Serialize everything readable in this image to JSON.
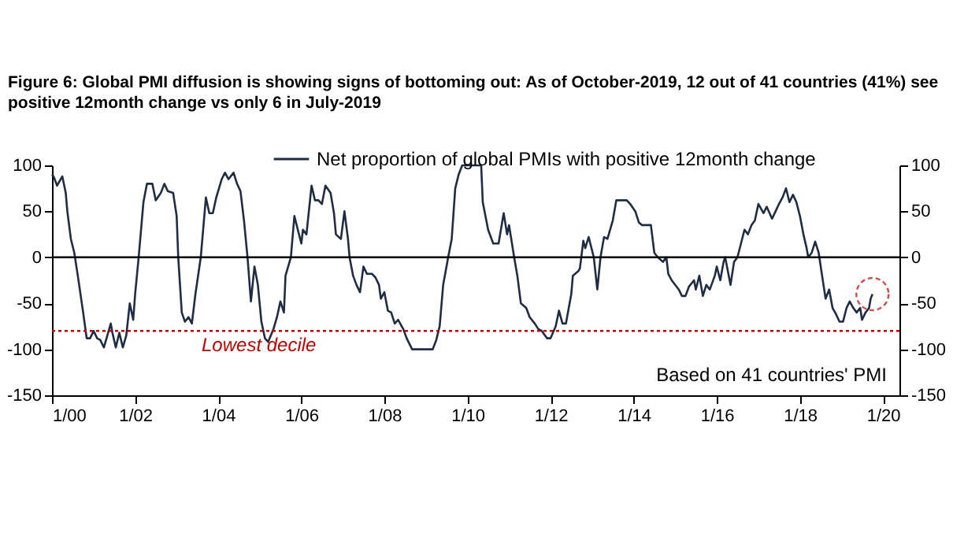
{
  "chart_data": {
    "type": "line",
    "title": "Figure 6: Global PMI diffusion is showing signs of bottoming out: As of October-2019, 12 out of 41 countries (41%) see positive 12month change vs only 6 in July-2019",
    "x": [
      "2000-01-01",
      "2000-01-15",
      "2000-02-15",
      "2000-04-01",
      "2000-05-01",
      "2000-05-15",
      "2000-06-15",
      "2000-07-15",
      "2000-08-15",
      "2000-10-01",
      "2000-11-01",
      "2000-12-01",
      "2001-01-01",
      "2001-02-01",
      "2001-03-01",
      "2001-04-01",
      "2001-06-01",
      "2001-06-15",
      "2001-07-15",
      "2001-08-15",
      "2001-09-15",
      "2001-10-15",
      "2001-11-15",
      "2001-12-15",
      "2002-01-01",
      "2002-02-01",
      "2002-03-15",
      "2002-04-15",
      "2002-06-01",
      "2002-07-01",
      "2002-08-15",
      "2002-09-15",
      "2002-10-15",
      "2002-12-01",
      "2003-01-01",
      "2003-01-15",
      "2003-02-15",
      "2003-03-15",
      "2003-04-15",
      "2003-05-15",
      "2003-06-15",
      "2003-08-01",
      "2003-09-15",
      "2003-10-15",
      "2003-11-15",
      "2003-12-15",
      "2004-02-01",
      "2004-03-01",
      "2004-04-01",
      "2004-05-15",
      "2004-06-15",
      "2004-07-15",
      "2004-08-15",
      "2004-09-15",
      "2004-10-15",
      "2004-11-15",
      "2004-12-15",
      "2005-01-15",
      "2005-02-15",
      "2005-03-15",
      "2005-05-01",
      "2005-06-01",
      "2005-07-01",
      "2005-08-01",
      "2005-08-15",
      "2005-10-01",
      "2005-11-01",
      "2005-12-01",
      "2006-01-01",
      "2006-01-15",
      "2006-02-15",
      "2006-04-01",
      "2006-05-01",
      "2006-06-01",
      "2006-07-01",
      "2006-08-01",
      "2006-09-15",
      "2006-10-15",
      "2006-11-01",
      "2006-12-15",
      "2007-01-15",
      "2007-02-15",
      "2007-03-01",
      "2007-04-01",
      "2007-05-01",
      "2007-06-01",
      "2007-07-01",
      "2007-08-01",
      "2007-09-15",
      "2007-10-15",
      "2007-11-15",
      "2007-12-01",
      "2008-01-01",
      "2008-02-01",
      "2008-03-01",
      "2008-04-01",
      "2008-05-01",
      "2008-06-15",
      "2008-07-15",
      "2008-09-01",
      "2008-12-01",
      "2009-03-01",
      "2009-04-01",
      "2009-05-01",
      "2009-06-01",
      "2009-07-15",
      "2009-08-15",
      "2009-09-15",
      "2009-10-15",
      "2009-11-15",
      "2010-05-01",
      "2010-05-15",
      "2010-07-01",
      "2010-08-15",
      "2010-10-01",
      "2010-11-15",
      "2010-12-15",
      "2011-01-01",
      "2011-02-15",
      "2011-03-15",
      "2011-04-15",
      "2011-06-01",
      "2011-07-01",
      "2011-08-15",
      "2011-09-15",
      "2011-10-15",
      "2011-12-01",
      "2012-01-01",
      "2012-02-15",
      "2012-03-15",
      "2012-04-15",
      "2012-05-15",
      "2012-07-01",
      "2012-07-15",
      "2012-09-01",
      "2012-09-15",
      "2012-10-15",
      "2012-11-01",
      "2012-12-01",
      "2013-01-15",
      "2013-02-15",
      "2013-03-15",
      "2013-04-15",
      "2013-05-15",
      "2013-07-01",
      "2013-08-01",
      "2013-09-01",
      "2013-11-01",
      "2013-12-01",
      "2014-01-15",
      "2014-02-15",
      "2014-03-15",
      "2014-04-15",
      "2014-06-01",
      "2014-07-01",
      "2014-08-01",
      "2014-09-15",
      "2014-10-15",
      "2014-11-01",
      "2014-12-01",
      "2015-02-01",
      "2015-03-01",
      "2015-04-01",
      "2015-05-01",
      "2015-06-15",
      "2015-07-01",
      "2015-08-01",
      "2015-09-01",
      "2015-10-01",
      "2015-11-01",
      "2015-12-15",
      "2016-01-01",
      "2016-02-01",
      "2016-03-01",
      "2016-03-15",
      "2016-05-01",
      "2016-06-01",
      "2016-07-01",
      "2016-08-01",
      "2016-09-01",
      "2016-10-01",
      "2016-11-01",
      "2016-12-01",
      "2017-01-01",
      "2017-02-15",
      "2017-03-15",
      "2017-05-01",
      "2017-06-01",
      "2017-07-01",
      "2017-08-01",
      "2017-09-01",
      "2017-10-01",
      "2017-11-01",
      "2017-12-01",
      "2018-01-01",
      "2018-02-01",
      "2018-03-01",
      "2018-03-15",
      "2018-04-15",
      "2018-05-15",
      "2018-06-15",
      "2018-07-15",
      "2018-08-15",
      "2018-09-15",
      "2018-10-15",
      "2018-11-15",
      "2018-12-15",
      "2019-01-15",
      "2019-02-15",
      "2019-03-15",
      "2019-04-15",
      "2019-05-15",
      "2019-06-15",
      "2019-07-01",
      "2019-08-01",
      "2019-09-01",
      "2019-09-15",
      "2019-10-01"
    ],
    "series": [
      {
        "name": "Net proportion of global PMIs with positive 12month change",
        "color": "#1f2d44",
        "values": [
          90,
          88,
          78,
          88,
          70,
          50,
          20,
          5,
          -20,
          -60,
          -88,
          -88,
          -80,
          -88,
          -90,
          -98,
          -72,
          -82,
          -98,
          -82,
          -98,
          -85,
          -50,
          -68,
          -40,
          0,
          60,
          80,
          80,
          62,
          70,
          80,
          72,
          70,
          45,
          0,
          -60,
          -70,
          -65,
          -72,
          -40,
          0,
          65,
          48,
          48,
          65,
          85,
          92,
          85,
          92,
          80,
          72,
          40,
          0,
          -48,
          -10,
          -30,
          -70,
          -88,
          -92,
          -78,
          -65,
          -48,
          -60,
          -20,
          0,
          45,
          30,
          15,
          30,
          25,
          78,
          62,
          62,
          58,
          78,
          70,
          48,
          25,
          20,
          50,
          20,
          0,
          -20,
          -30,
          -38,
          -10,
          -18,
          -18,
          -22,
          -30,
          -45,
          -38,
          -58,
          -60,
          -72,
          -68,
          -78,
          -88,
          -100,
          -100,
          -100,
          -90,
          -75,
          -30,
          0,
          20,
          75,
          90,
          100,
          100,
          60,
          30,
          15,
          15,
          48,
          25,
          35,
          0,
          -20,
          -50,
          -55,
          -65,
          -72,
          -78,
          -80,
          -88,
          -88,
          -75,
          -58,
          -72,
          -72,
          -40,
          -20,
          -15,
          -12,
          18,
          10,
          22,
          0,
          -35,
          0,
          22,
          20,
          40,
          62,
          62,
          62,
          58,
          50,
          38,
          35,
          35,
          35,
          5,
          0,
          -5,
          0,
          -18,
          -25,
          -35,
          -42,
          -42,
          -32,
          -25,
          -35,
          -20,
          -42,
          -30,
          -35,
          -20,
          -10,
          -25,
          -5,
          0,
          -30,
          -5,
          0,
          15,
          30,
          25,
          35,
          40,
          58,
          48,
          55,
          42,
          50,
          58,
          65,
          75,
          60,
          68,
          60,
          45,
          25,
          10,
          0,
          5,
          17,
          5,
          -20,
          -45,
          -35,
          -55,
          -62,
          -70,
          -70,
          -55,
          -48,
          -55,
          -60,
          -55,
          -68,
          -60,
          -55,
          -45,
          -40
        ]
      }
    ],
    "xlim": [
      "2000-01-01",
      "2020-05-25"
    ],
    "xticks": [
      {
        "value": "2000-01",
        "label": "1/00"
      },
      {
        "value": "2002-01",
        "label": "1/02"
      },
      {
        "value": "2004-01",
        "label": "1/04"
      },
      {
        "value": "2006-01",
        "label": "1/06"
      },
      {
        "value": "2008-01",
        "label": "1/08"
      },
      {
        "value": "2010-01",
        "label": "1/10"
      },
      {
        "value": "2012-01",
        "label": "1/12"
      },
      {
        "value": "2014-01",
        "label": "1/14"
      },
      {
        "value": "2016-01",
        "label": "1/16"
      },
      {
        "value": "2018-01",
        "label": "1/18"
      },
      {
        "value": "2020-01",
        "label": "1/20"
      }
    ],
    "ylim": [
      -150,
      100
    ],
    "yticks": [
      -150,
      -100,
      -50,
      0,
      50,
      100
    ],
    "y2lim": [
      -150,
      100
    ],
    "y2ticks": [
      -150,
      -100,
      -50,
      0,
      50,
      100
    ],
    "ref_lines": [
      {
        "axis": "y",
        "value": 0,
        "color": "#000000",
        "line_style": "solid"
      },
      {
        "axis": "y",
        "value": -80,
        "label": "Lowest decile",
        "color": "#c00000",
        "line_style": "dotted"
      }
    ],
    "annotations": [
      "Based on 41 countries' PMI"
    ],
    "legend": "top",
    "grid": false,
    "marker": "none",
    "line_style": "solid"
  }
}
